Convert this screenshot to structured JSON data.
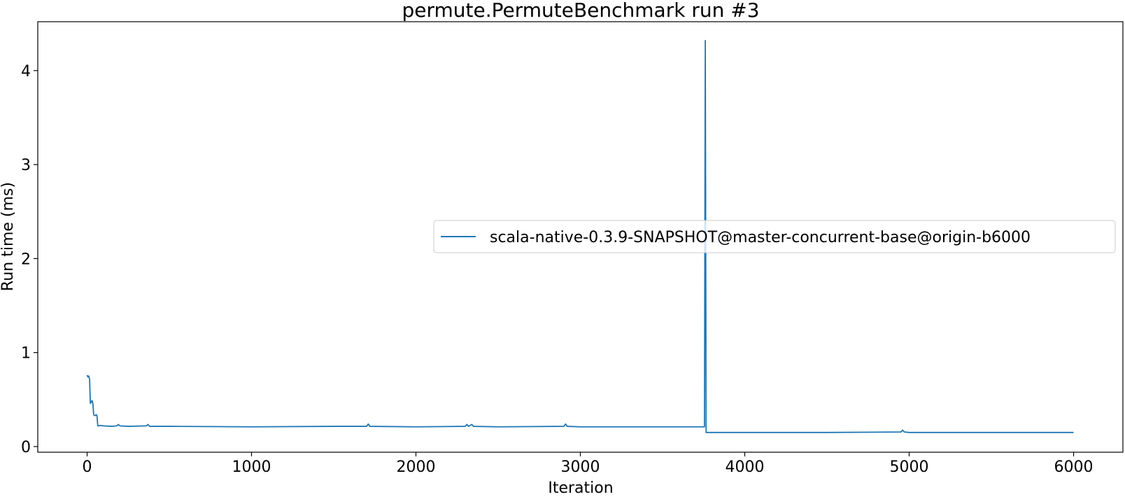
{
  "chart_data": {
    "type": "line",
    "title": "permute.PermuteBenchmark run #3",
    "xlabel": "Iteration",
    "ylabel": "Run time (ms)",
    "xlim": [
      -300,
      6300
    ],
    "ylim": [
      -0.06,
      4.52
    ],
    "xticks": [
      0,
      1000,
      2000,
      3000,
      4000,
      5000,
      6000
    ],
    "yticks": [
      0,
      1,
      2,
      3,
      4
    ],
    "grid": false,
    "legend_position": "center-right",
    "colors": {
      "series": "#1f77b4",
      "axes": "#000000"
    },
    "series": [
      {
        "name": "scala-native-0.3.9-SNAPSHOT@master-concurrent-base@origin-b6000",
        "x": [
          0,
          5,
          10,
          15,
          20,
          25,
          30,
          35,
          40,
          45,
          50,
          55,
          60,
          65,
          70,
          80,
          100,
          150,
          180,
          190,
          200,
          250,
          360,
          370,
          380,
          500,
          1000,
          1500,
          1700,
          1710,
          1720,
          2000,
          2300,
          2310,
          2320,
          2340,
          2350,
          2500,
          2900,
          2910,
          2920,
          3000,
          3500,
          3755,
          3760,
          3765,
          3770,
          3800,
          4000,
          4500,
          4950,
          4960,
          4970,
          5000,
          5500,
          6000
        ],
        "y": [
          0.76,
          0.74,
          0.75,
          0.72,
          0.46,
          0.47,
          0.49,
          0.46,
          0.34,
          0.33,
          0.33,
          0.34,
          0.33,
          0.22,
          0.22,
          0.225,
          0.22,
          0.215,
          0.22,
          0.235,
          0.22,
          0.215,
          0.22,
          0.235,
          0.215,
          0.215,
          0.21,
          0.215,
          0.215,
          0.24,
          0.215,
          0.21,
          0.215,
          0.235,
          0.215,
          0.235,
          0.215,
          0.21,
          0.215,
          0.24,
          0.215,
          0.21,
          0.21,
          0.21,
          4.32,
          0.15,
          0.15,
          0.15,
          0.15,
          0.15,
          0.155,
          0.175,
          0.155,
          0.15,
          0.15,
          0.15
        ]
      }
    ]
  }
}
